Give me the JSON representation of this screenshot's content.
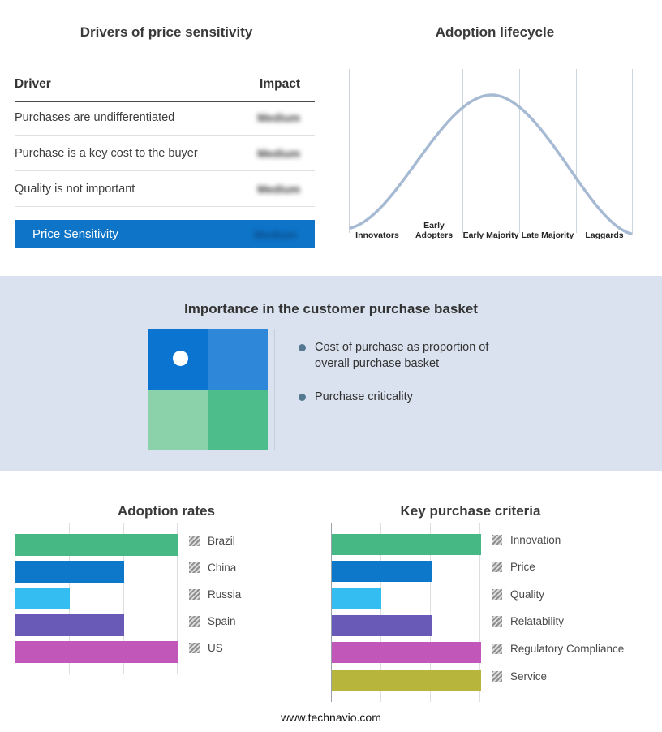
{
  "colors": {
    "accent_blue": "#0e74c8",
    "band_background": "#d9e2ee",
    "curve_line": "#a6bad3",
    "bullet_dot": "#54788f"
  },
  "drivers_panel": {
    "title": "Drivers of price sensitivity",
    "columns": [
      "Driver",
      "Impact"
    ],
    "rows": [
      {
        "driver": "Purchases are undifferentiated",
        "impact": "Medium"
      },
      {
        "driver": "Purchase is a key cost to the buyer",
        "impact": "Medium"
      },
      {
        "driver": "Quality is not important",
        "impact": "Medium"
      }
    ],
    "summary": {
      "label": "Price Sensitivity",
      "impact": "Medium"
    }
  },
  "basket_panel": {
    "title": "Importance in the customer purchase basket",
    "bullets": [
      "Cost of purchase as proportion of overall purchase basket",
      "Purchase criticality"
    ],
    "quadrant_colors": {
      "top_left": "#0b74d0",
      "top_right": "#2f87da",
      "bottom_left": "#8bd2aa",
      "bottom_right": "#4cbd8b"
    }
  },
  "footer": {
    "url": "www.technavio.com"
  },
  "chart_data": [
    {
      "type": "line",
      "title": "Adoption lifecycle",
      "x_categories": [
        "Innovators",
        "Early Adopters",
        "Early Majority",
        "Late Majority",
        "Laggards"
      ],
      "curve": "bell-shaped adoption curve peaking over Early Majority",
      "y_normalized_by_stage": [
        0.08,
        0.55,
        1.0,
        0.55,
        0.05
      ],
      "grid": true,
      "axis_labels_shown": false
    },
    {
      "type": "bar",
      "orientation": "horizontal",
      "title": "Adoption rates",
      "categories": [
        "Brazil",
        "China",
        "Russia",
        "Spain",
        "US"
      ],
      "values": [
        3,
        2,
        1,
        2,
        3
      ],
      "value_units": "relative gridline units (no numeric axis labels shown)",
      "colors": [
        "#45b884",
        "#0d78c9",
        "#33bdf0",
        "#6a5ab8",
        "#c157b8"
      ],
      "xlim": [
        0,
        3
      ],
      "grid": true,
      "legend_position": "right"
    },
    {
      "type": "bar",
      "orientation": "horizontal",
      "title": "Key purchase criteria",
      "categories": [
        "Innovation",
        "Price",
        "Quality",
        "Relatability",
        "Regulatory Compliance",
        "Service"
      ],
      "values": [
        3,
        2,
        1,
        2,
        3,
        3
      ],
      "value_units": "relative gridline units (no numeric axis labels shown)",
      "colors": [
        "#45b884",
        "#0d78c9",
        "#33bdf0",
        "#6a5ab8",
        "#c157b8",
        "#b8b53c"
      ],
      "xlim": [
        0,
        3
      ],
      "grid": true,
      "legend_position": "right"
    }
  ]
}
